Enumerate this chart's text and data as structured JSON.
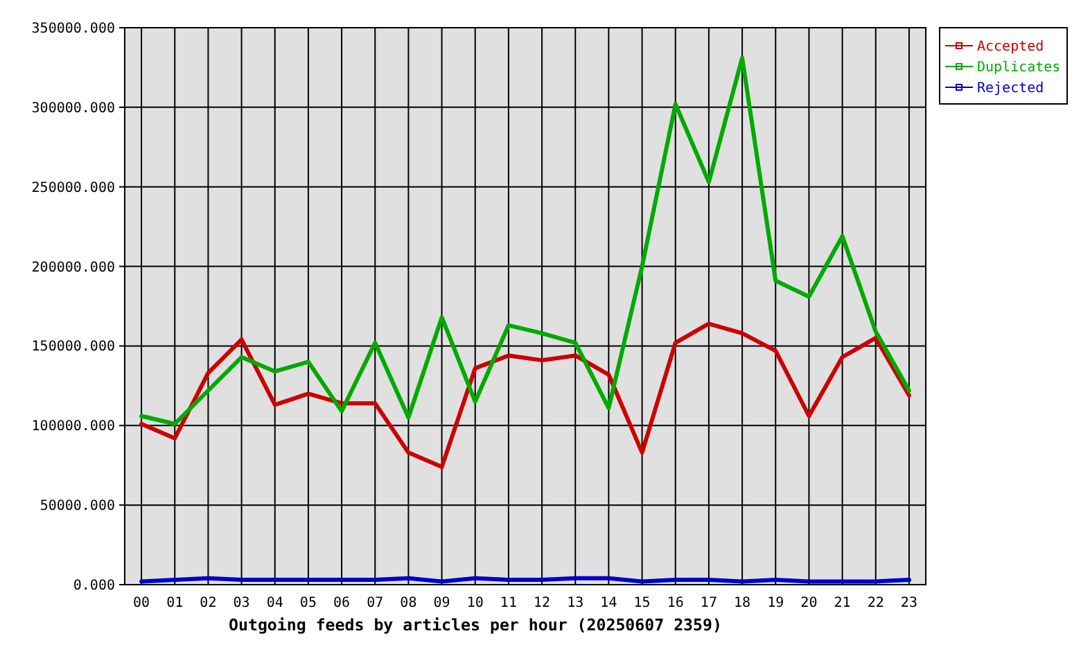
{
  "chart_data": {
    "type": "line",
    "title": "Outgoing feeds by articles per hour (20250607 2359)",
    "categories": [
      "00",
      "01",
      "02",
      "03",
      "04",
      "05",
      "06",
      "07",
      "08",
      "09",
      "10",
      "11",
      "12",
      "13",
      "14",
      "15",
      "16",
      "17",
      "18",
      "19",
      "20",
      "21",
      "22",
      "23"
    ],
    "series": [
      {
        "name": "Accepted",
        "color": "#cc0000",
        "values": [
          101000,
          92000,
          133000,
          154000,
          113000,
          120000,
          114000,
          114000,
          83000,
          74000,
          136000,
          144000,
          141000,
          144000,
          132000,
          83000,
          152000,
          164000,
          158000,
          147000,
          106000,
          143000,
          155000,
          119000
        ]
      },
      {
        "name": "Duplicates",
        "color": "#00aa00",
        "values": [
          106000,
          101000,
          122000,
          143000,
          134000,
          140000,
          109000,
          152000,
          105000,
          168000,
          115000,
          163000,
          158000,
          152000,
          111000,
          200000,
          302000,
          253000,
          331000,
          191000,
          181000,
          219000,
          159000,
          122000
        ]
      },
      {
        "name": "Rejected",
        "color": "#0000cc",
        "values": [
          2000,
          3000,
          4000,
          3000,
          3000,
          3000,
          3000,
          3000,
          4000,
          2000,
          4000,
          3000,
          3000,
          4000,
          4000,
          2000,
          3000,
          3000,
          2000,
          3000,
          2000,
          2000,
          2000,
          3000
        ]
      }
    ],
    "ylim": [
      0,
      350000
    ],
    "yticks": [
      {
        "value": 0,
        "label": "0.000"
      },
      {
        "value": 50000,
        "label": "50000.000"
      },
      {
        "value": 100000,
        "label": "100000.000"
      },
      {
        "value": 150000,
        "label": "150000.000"
      },
      {
        "value": 200000,
        "label": "200000.000"
      },
      {
        "value": 250000,
        "label": "250000.000"
      },
      {
        "value": 300000,
        "label": "300000.000"
      },
      {
        "value": 350000,
        "label": "350000.000"
      }
    ],
    "grid": true,
    "legend": "top right"
  }
}
